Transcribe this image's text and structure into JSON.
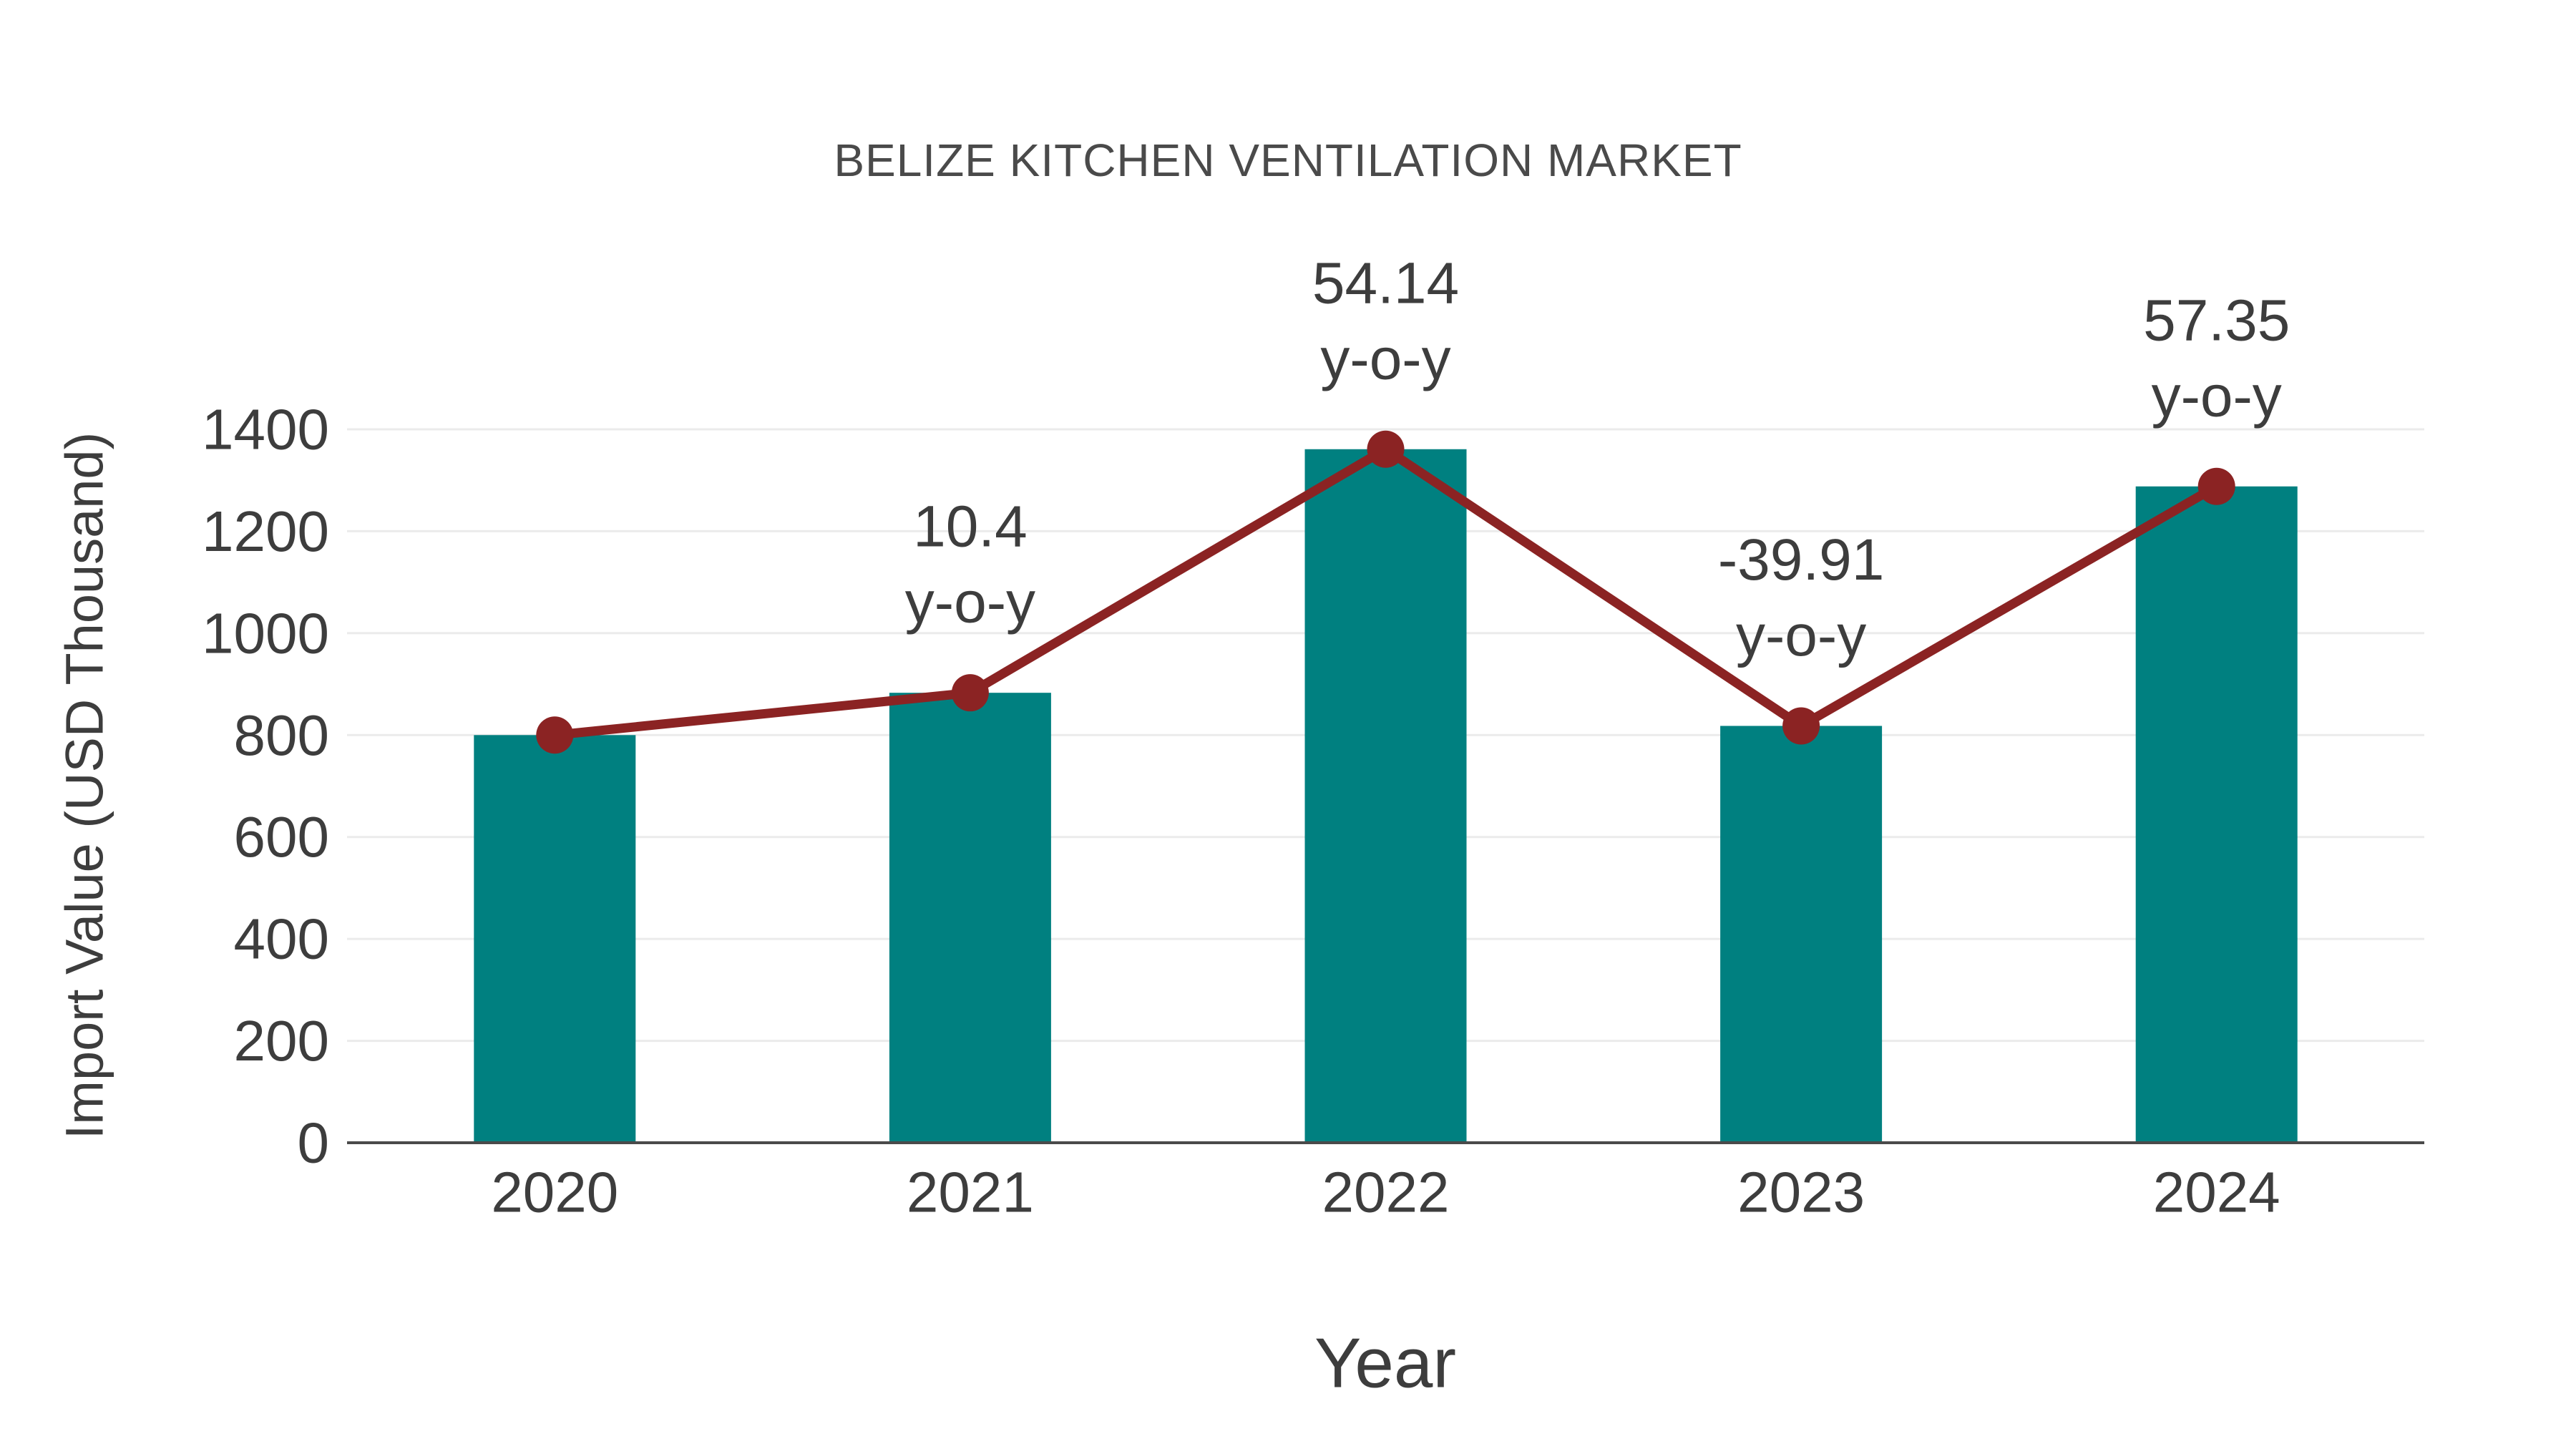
{
  "chart": {
    "title": "BELIZE KITCHEN VENTILATION MARKET",
    "xlabel": "Year",
    "ylabel": "Import Value (USD Thousand)"
  },
  "chart_data": {
    "type": "bar",
    "title": "BELIZE KITCHEN VENTILATION MARKET",
    "xlabel": "Year",
    "ylabel": "Import Value (USD Thousand)",
    "categories": [
      "2020",
      "2021",
      "2022",
      "2023",
      "2024"
    ],
    "series": [
      {
        "name": "Import Value",
        "type": "bar",
        "values": [
          800,
          883,
          1361,
          818,
          1288
        ]
      },
      {
        "name": "Import Value trend",
        "type": "line",
        "values": [
          800,
          883,
          1361,
          818,
          1288
        ]
      }
    ],
    "annotations": [
      {
        "category": "2021",
        "value": "10.4",
        "unit": "y-o-y"
      },
      {
        "category": "2022",
        "value": "54.14",
        "unit": "y-o-y"
      },
      {
        "category": "2023",
        "value": "-39.91",
        "unit": "y-o-y"
      },
      {
        "category": "2024",
        "value": "57.35",
        "unit": "y-o-y"
      }
    ],
    "yticks": [
      "0",
      "200",
      "400",
      "600",
      "800",
      "1000",
      "1200",
      "1400"
    ],
    "ytick_values": [
      0,
      200,
      400,
      600,
      800,
      1000,
      1200,
      1400
    ],
    "ylim": [
      0,
      1400
    ],
    "grid": true,
    "legend_position": "none",
    "colors": {
      "bar": "#008080",
      "line": "#8B2323",
      "marker": "#8B2323",
      "gridline": "#EBEBEB",
      "axis_line": "#4A4A4A",
      "tick_text": "#3D3D3D",
      "title_text": "#4A4A4A"
    }
  }
}
